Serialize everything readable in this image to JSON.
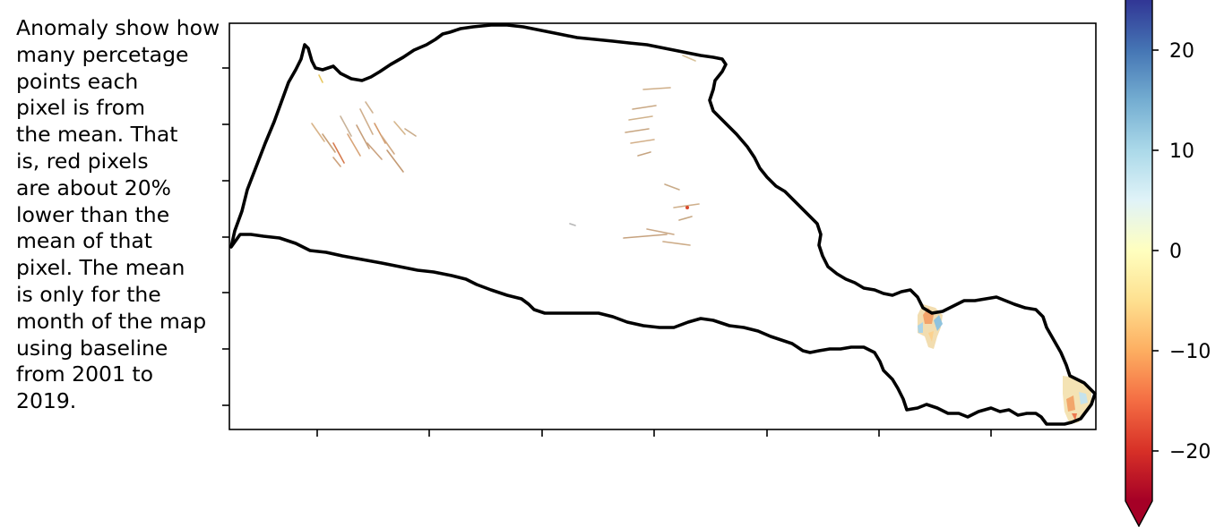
{
  "caption": "Anomaly show how\nmany percetage\npoints each\npixel is from\nthe mean. That\nis, red pixels\nare about 20%\nlower than the\nmean of that\npixel. The mean\nis only for the\nmonth of the map\nusing baseline\nfrom 2001 to\n2019.",
  "colorbar": {
    "colormap": "RdYlBu",
    "extend": "min",
    "range": [
      -25,
      25
    ],
    "ticks": [
      {
        "value": 20,
        "label": "20"
      },
      {
        "value": 10,
        "label": "10"
      },
      {
        "value": 0,
        "label": "0"
      },
      {
        "value": -10,
        "label": "−10"
      },
      {
        "value": -20,
        "label": "−20"
      }
    ],
    "colors": [
      "#a50026",
      "#d73027",
      "#f46d43",
      "#fdae61",
      "#fee090",
      "#ffffbf",
      "#e0f3f8",
      "#abd9e9",
      "#74add1",
      "#4575b4",
      "#313695"
    ]
  },
  "map": {
    "border_color": "#000000"
  }
}
